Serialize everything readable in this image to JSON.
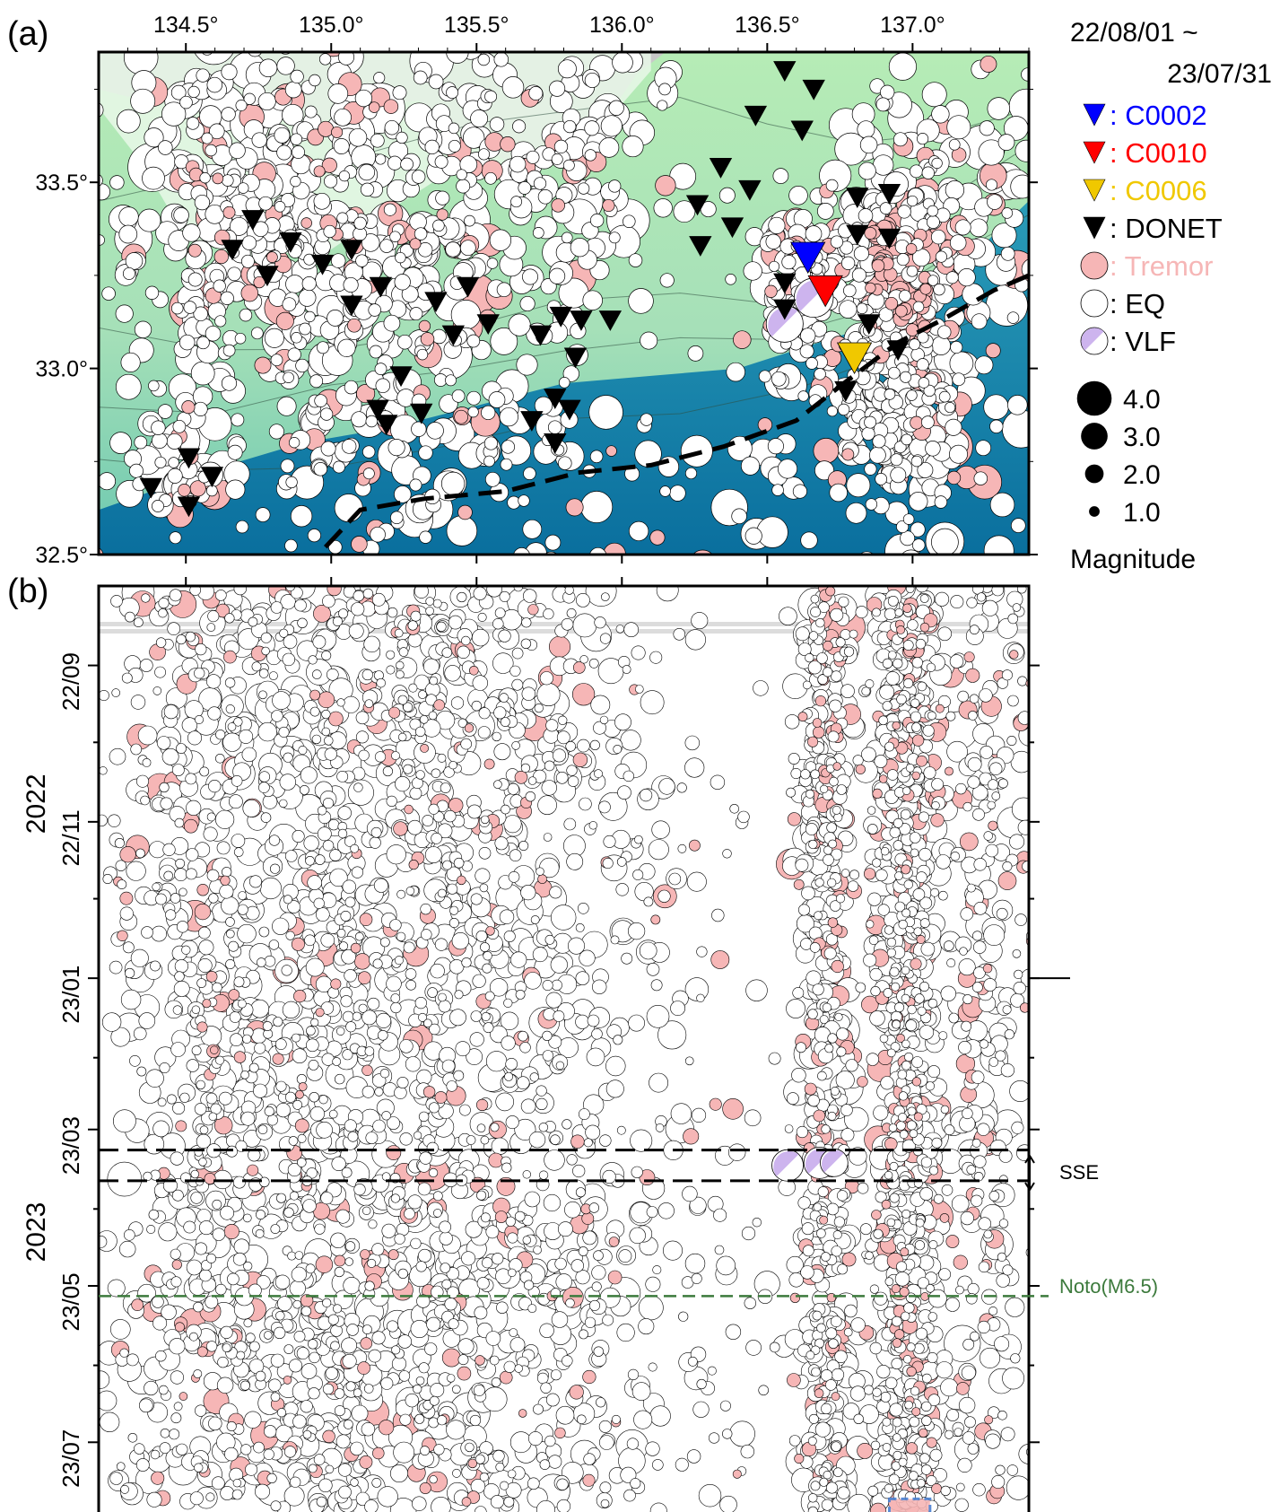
{
  "colors": {
    "land": "#c8c8c8",
    "shelf_light": "#e9f8e9",
    "shelf_mid": "#a6e6a6",
    "slope": "#5cc4a6",
    "deep": "#0c84b8",
    "trough": "#0a5f93",
    "eq_fill": "#ffffff",
    "tremor_fill": "#f6b6b6",
    "vlf_fill": "#cdb4ee",
    "c0002": "#0000ff",
    "c0010": "#ff0000",
    "c0006": "#f0c800",
    "donet": "#000000",
    "noto_line": "#3c7a3c",
    "trough_line": "#000000"
  },
  "chart_data": [
    {
      "type": "map",
      "panel_label": "(a)",
      "x_ticks": [
        "134.5°",
        "135.0°",
        "135.5°",
        "136.0°",
        "136.5°",
        "137.0°"
      ],
      "x_tick_values": [
        134.5,
        135.0,
        135.5,
        136.0,
        136.5,
        137.0
      ],
      "y_ticks": [
        "33.5°",
        "33.0°",
        "32.5°"
      ],
      "y_tick_values": [
        33.5,
        33.0,
        32.5
      ],
      "xlim": [
        134.2,
        137.4
      ],
      "ylim": [
        32.5,
        33.85
      ],
      "date_range_start": "22/08/01 ~",
      "date_range_end": "23/07/31",
      "legend": [
        {
          "symbol": "triangle",
          "color_key": "c0002",
          "label": ": C0002"
        },
        {
          "symbol": "triangle",
          "color_key": "c0010",
          "label": ": C0010"
        },
        {
          "symbol": "triangle",
          "color_key": "c0006",
          "label": ": C0006"
        },
        {
          "symbol": "triangle",
          "color_key": "donet",
          "label": ": DONET"
        },
        {
          "symbol": "circle",
          "color_key": "tremor_fill",
          "label": ": Tremor"
        },
        {
          "symbol": "circle",
          "color_key": "eq_fill",
          "label": ": EQ"
        },
        {
          "symbol": "circle",
          "color_key": "vlf_fill",
          "label": ": VLF"
        }
      ],
      "magnitude_scale": {
        "values": [
          "4.0",
          "3.0",
          "2.0",
          "1.0"
        ],
        "title": "Magnitude"
      },
      "stations": {
        "C0002": [
          136.64,
          33.3
        ],
        "C0010": [
          136.7,
          33.21
        ],
        "C0006": [
          136.8,
          33.03
        ],
        "DONET": [
          [
            134.38,
            32.68
          ],
          [
            134.51,
            32.63
          ],
          [
            134.51,
            32.76
          ],
          [
            134.59,
            32.71
          ],
          [
            134.66,
            33.32
          ],
          [
            134.73,
            33.4
          ],
          [
            134.78,
            33.25
          ],
          [
            134.86,
            33.34
          ],
          [
            134.97,
            33.28
          ],
          [
            135.07,
            33.32
          ],
          [
            135.07,
            33.17
          ],
          [
            135.17,
            33.22
          ],
          [
            135.36,
            33.18
          ],
          [
            135.42,
            33.09
          ],
          [
            135.47,
            33.22
          ],
          [
            135.54,
            33.12
          ],
          [
            135.72,
            33.09
          ],
          [
            135.79,
            33.14
          ],
          [
            135.86,
            33.13
          ],
          [
            135.96,
            33.13
          ],
          [
            135.84,
            33.03
          ],
          [
            135.24,
            32.98
          ],
          [
            135.16,
            32.89
          ],
          [
            135.19,
            32.85
          ],
          [
            135.31,
            32.88
          ],
          [
            135.69,
            32.86
          ],
          [
            135.77,
            32.92
          ],
          [
            135.82,
            32.89
          ],
          [
            135.77,
            32.8
          ],
          [
            136.26,
            33.44
          ],
          [
            136.27,
            33.33
          ],
          [
            136.34,
            33.54
          ],
          [
            136.38,
            33.38
          ],
          [
            136.44,
            33.48
          ],
          [
            136.46,
            33.68
          ],
          [
            136.56,
            33.23
          ],
          [
            136.56,
            33.16
          ],
          [
            136.56,
            33.8
          ],
          [
            136.62,
            33.64
          ],
          [
            136.66,
            33.75
          ],
          [
            136.81,
            33.46
          ],
          [
            136.81,
            33.36
          ],
          [
            136.85,
            33.12
          ],
          [
            136.77,
            32.94
          ],
          [
            136.92,
            33.47
          ],
          [
            136.92,
            33.35
          ],
          [
            136.95,
            33.05
          ]
        ]
      },
      "trough_axis": [
        [
          134.98,
          32.52
        ],
        [
          135.1,
          32.62
        ],
        [
          135.32,
          32.65
        ],
        [
          135.6,
          32.67
        ],
        [
          135.85,
          32.72
        ],
        [
          136.1,
          32.74
        ],
        [
          136.35,
          32.79
        ],
        [
          136.6,
          32.86
        ],
        [
          136.78,
          32.97
        ],
        [
          136.95,
          33.07
        ],
        [
          137.1,
          33.13
        ],
        [
          137.28,
          33.21
        ],
        [
          137.4,
          33.25
        ]
      ],
      "seismicity_note": "Dense EQ catalogue (thousands of events); scatter density is rendered procedurally by the page script."
    },
    {
      "type": "scatter",
      "panel_label": "(b)",
      "xlim": [
        134.2,
        137.4
      ],
      "x_ticks_values": [
        134.5,
        135.0,
        135.5,
        136.0,
        136.5,
        137.0
      ],
      "y_tick_labels": [
        "22/09",
        "22/11",
        "23/01",
        "23/03",
        "23/05",
        "23/07"
      ],
      "year_labels": [
        "2022",
        "2023"
      ],
      "time_start": "2022-08-01",
      "time_end": "2023-07-31",
      "no_data_band": [
        "2022-08-01",
        "2022-08-17"
      ],
      "sse_window": [
        "2023-03-09",
        "2023-03-21"
      ],
      "sse_label": "SSE",
      "noto_event": {
        "date": "2023-05-05",
        "label": "Noto(M6.5)"
      },
      "vlf_events": [
        {
          "lon": 136.57,
          "date": "2023-03-15",
          "mag": 3.0
        },
        {
          "lon": 136.68,
          "date": "2023-03-14",
          "mag": 3.0
        },
        {
          "lon": 136.73,
          "date": "2023-03-14",
          "mag": 2.6
        }
      ],
      "tremor_burst": {
        "lon_range": [
          136.92,
          137.06
        ],
        "date": "2023-07-28"
      }
    }
  ]
}
